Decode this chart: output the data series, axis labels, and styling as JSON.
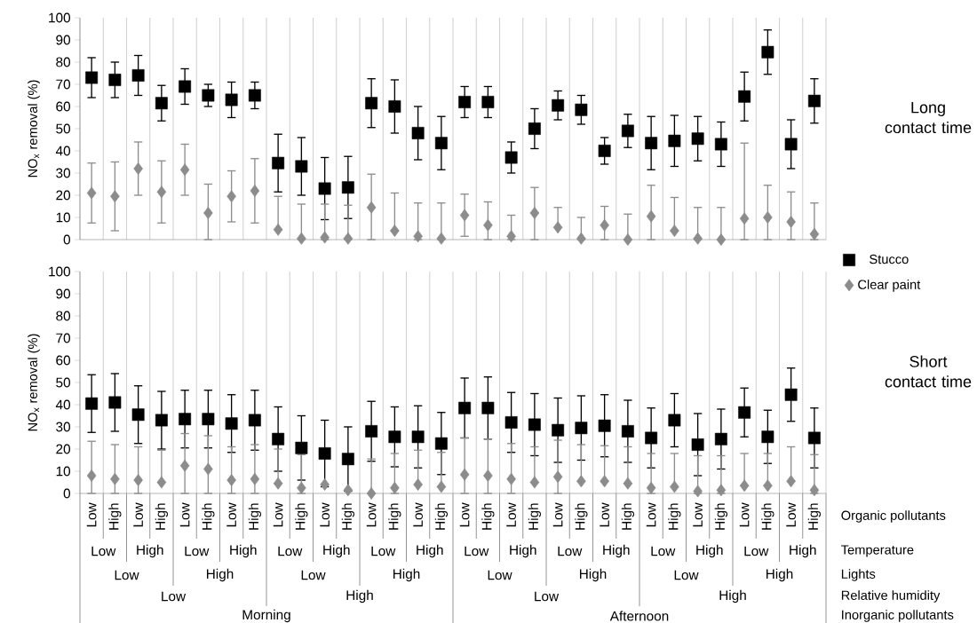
{
  "chart_data": [
    {
      "type": "scatter",
      "annotations": [
        "Long contact time"
      ],
      "ylabel": "NO$_{x}$ removal (%)",
      "categories": [
        null,
        null,
        null,
        null,
        null,
        null,
        null,
        null,
        null,
        null,
        null,
        null,
        null,
        null,
        null,
        null,
        null,
        null,
        null,
        null,
        null,
        null,
        null,
        null,
        null,
        null,
        null,
        null,
        null,
        null,
        null,
        null
      ],
      "series": [
        {
          "name": "Stucco",
          "color": "#000000",
          "marker": "square",
          "values": [
            73,
            72,
            74,
            61.5,
            69,
            65,
            63,
            65,
            34.5,
            33,
            23,
            23.5,
            61.5,
            60,
            48,
            43.5,
            62,
            62,
            37,
            50,
            60.5,
            58.5,
            40,
            49,
            43.5,
            44.5,
            45.5,
            43,
            64.5,
            84.5,
            43,
            62.5
          ],
          "errors": [
            9,
            8,
            9,
            8,
            8,
            5,
            8,
            6,
            13,
            13,
            14,
            14,
            11,
            12,
            12,
            12,
            7,
            7,
            7,
            9,
            6.5,
            6.5,
            6,
            7.5,
            12,
            11.5,
            10,
            10,
            11,
            10,
            11,
            10
          ]
        },
        {
          "name": "Clear paint",
          "color": "#8c8c8c",
          "marker": "diamond",
          "values": [
            21,
            19.5,
            32,
            21.5,
            31.5,
            12,
            19.5,
            22,
            4.5,
            0.5,
            1,
            0.5,
            14.5,
            4,
            1.5,
            0.5,
            11,
            6.5,
            1.5,
            12,
            5.5,
            0.5,
            6.5,
            0,
            10.5,
            4,
            0.5,
            0,
            9.5,
            10,
            8,
            2.5
          ],
          "errors": [
            13.5,
            15.5,
            12,
            14,
            11.5,
            [
              0,
              25
            ],
            11.5,
            14.5,
            [
              4.5,
              19.5
            ],
            [
              0,
              16
            ],
            [
              0,
              16
            ],
            [
              0,
              15.5
            ],
            [
              0,
              29.5
            ],
            [
              4,
              21
            ],
            [
              0,
              16.5
            ],
            [
              0,
              16.5
            ],
            9.5,
            [
              0,
              17
            ],
            [
              0,
              11
            ],
            [
              0,
              23.5
            ],
            [
              5.5,
              14.5
            ],
            [
              0,
              10
            ],
            [
              0,
              15
            ],
            [
              0,
              11.5
            ],
            [
              0,
              24.5
            ],
            [
              4,
              19
            ],
            [
              0,
              14.5
            ],
            [
              0,
              14.5
            ],
            [
              0,
              43.5
            ],
            [
              0,
              24.5
            ],
            [
              0,
              21.5
            ],
            [
              0,
              16.5
            ]
          ]
        }
      ],
      "ylim": [
        0,
        100
      ],
      "yticks": [
        0,
        10,
        20,
        30,
        40,
        50,
        60,
        70,
        80,
        90,
        100
      ],
      "grid": "x",
      "legend": "right",
      "tick_labels": "y"
    },
    {
      "type": "scatter",
      "ylabel": "NO$_{x}$ removal (%)",
      "categories": [
        "Low",
        "High",
        "Low",
        "High",
        "Low",
        "High",
        "Low",
        "High",
        "Low",
        "High",
        "Low",
        "High",
        "Low",
        "High",
        "Low",
        "High",
        "Low",
        "High",
        "Low",
        "High",
        "Low",
        "High",
        "Low",
        "High",
        "Low",
        "High",
        "Low",
        "High",
        "Low",
        "High",
        "Low",
        "High"
      ],
      "series": [
        {
          "color": "#000000",
          "marker": "square",
          "values": [
            40.5,
            41,
            35.5,
            33,
            33.5,
            33.5,
            31.5,
            33,
            24.5,
            20.5,
            18,
            15.5,
            28,
            25.5,
            25.5,
            22.5,
            38.5,
            38.5,
            32,
            31,
            28.5,
            29.5,
            30.5,
            28,
            25,
            33,
            22,
            24.5,
            36.5,
            25.5,
            44.5,
            25
          ],
          "errors": [
            13,
            13,
            13,
            13,
            13,
            13,
            13,
            13.5,
            14.5,
            14.5,
            15,
            14.5,
            13.5,
            13.5,
            14,
            14,
            13.5,
            14,
            13.5,
            14,
            14.5,
            14.5,
            14,
            14,
            13.5,
            12,
            14,
            13.5,
            11,
            12,
            12,
            13.5
          ]
        },
        {
          "color": "#8c8c8c",
          "marker": "diamond",
          "values": [
            8,
            6.5,
            6,
            5,
            12.5,
            11,
            6,
            6.5,
            4.5,
            2.5,
            4,
            1.5,
            0,
            2.5,
            4,
            3,
            8.5,
            8,
            6.5,
            5,
            7.5,
            5.5,
            5.5,
            4.5,
            2.5,
            3,
            1,
            1.5,
            3.5,
            3.5,
            5.5,
            1.5
          ],
          "errors": [
            [
              0,
              23.5
            ],
            [
              0,
              22
            ],
            [
              0,
              21
            ],
            [
              5,
              19.5
            ],
            [
              0,
              27
            ],
            [
              0,
              26
            ],
            [
              0,
              21
            ],
            [
              0,
              22
            ],
            [
              4.5,
              20
            ],
            [
              0,
              17.5
            ],
            null,
            null,
            [
              0,
              15.5
            ],
            [
              0,
              18
            ],
            [
              4,
              19.5
            ],
            [
              3,
              18.5
            ],
            [
              0,
              25
            ],
            [
              0,
              24.5
            ],
            [
              0,
              22.5
            ],
            [
              5,
              21
            ],
            [
              0,
              24
            ],
            [
              5.5,
              22
            ],
            [
              5.5,
              21.5
            ],
            [
              4.5,
              21
            ],
            [
              0,
              18
            ],
            [
              3,
              18
            ],
            [
              0,
              17
            ],
            [
              0,
              17
            ],
            [
              3.5,
              18
            ],
            [
              3.5,
              18
            ],
            [
              5.5,
              21
            ],
            [
              0,
              17.5
            ]
          ]
        }
      ],
      "ylim": [
        0,
        100
      ],
      "yticks": [
        0,
        10,
        20,
        30,
        40,
        50,
        60,
        70,
        80,
        90,
        100
      ],
      "grid": "x",
      "annotations": [
        "Short contact time",
        "Low",
        "High",
        "Low",
        "High",
        "Low",
        "High",
        "Low",
        "High",
        "Low",
        "High",
        "Low",
        "High",
        "Low",
        "High",
        "Low",
        "High",
        "Low",
        "High",
        "Low",
        "High",
        "Low",
        "High",
        "Low",
        "High",
        "Low",
        "High",
        "Low",
        "High",
        "Morning",
        "Afternoon",
        "Organic pollutants",
        "Temperature",
        "Lights",
        "Relative humidity",
        "Inorganic pollutants"
      ]
    }
  ]
}
